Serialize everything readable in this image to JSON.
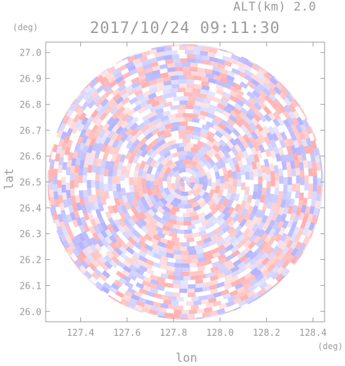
{
  "header": {
    "altitude_label": "ALT(km) 2.0",
    "timestamp": "2017/10/24 09:11:30",
    "y_unit": "(deg)",
    "x_unit": "(deg)"
  },
  "chart_data": {
    "type": "heatmap",
    "title": "2017/10/24 09:11:30",
    "subtitle": "ALT(km) 2.0",
    "xlabel": "lon",
    "ylabel": "lat",
    "x_unit": "(deg)",
    "y_unit": "(deg)",
    "xlim": [
      127.25,
      128.45
    ],
    "ylim": [
      25.96,
      27.04
    ],
    "x_ticks": [
      "127.4",
      "127.6",
      "127.8",
      "128.0",
      "128.2",
      "128.4"
    ],
    "y_ticks": [
      "26.0",
      "26.1",
      "26.2",
      "26.3",
      "26.4",
      "26.5",
      "26.6",
      "26.7",
      "26.8",
      "26.9",
      "27.0"
    ],
    "center": {
      "lon": 127.85,
      "lat": 26.5
    },
    "grid": false,
    "colors": {
      "positive": "#ff9a9a",
      "negative": "#a0a0ff",
      "neutral": "#ffffff",
      "axis": "#9a9a9a"
    }
  }
}
